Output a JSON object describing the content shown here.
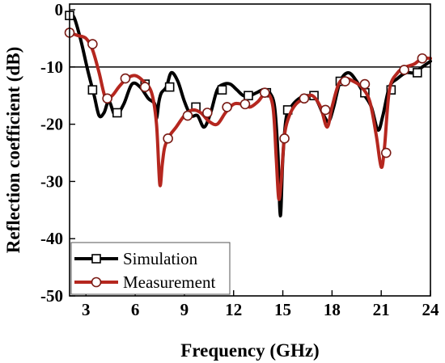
{
  "chart_data": {
    "type": "line",
    "xlabel": "Frequency (GHz)",
    "ylabel": "Reflection coefficient (dB)",
    "xlim": [
      2,
      24
    ],
    "ylim": [
      -50,
      1
    ],
    "x_ticks": [
      3,
      6,
      9,
      12,
      15,
      18,
      21,
      24
    ],
    "y_ticks": [
      0,
      -10,
      -20,
      -30,
      -40,
      -50
    ],
    "reference_line": -10,
    "grid": false,
    "legend_position": "bottom-left",
    "series": [
      {
        "name": "Simulation",
        "color": "#000000",
        "marker": "square",
        "x": [
          2.0,
          2.3,
          2.7,
          3.1,
          3.5,
          3.8,
          4.1,
          4.4,
          4.8,
          5.3,
          5.8,
          6.3,
          6.8,
          7.2,
          7.3,
          7.45,
          7.6,
          7.9,
          8.2,
          8.6,
          9.0,
          9.4,
          9.8,
          10.2,
          10.6,
          11.0,
          11.4,
          11.8,
          12.2,
          12.6,
          13.0,
          13.4,
          13.8,
          14.2,
          14.5,
          14.7,
          14.85,
          15.0,
          15.2,
          15.5,
          16.0,
          16.5,
          17.0,
          17.5,
          17.8,
          18.1,
          18.5,
          19.0,
          19.5,
          20.0,
          20.4,
          20.8,
          21.1,
          21.5,
          22.0,
          22.5,
          23.0,
          23.5,
          24.0
        ],
        "y": [
          -0.5,
          -1.5,
          -5.5,
          -10.5,
          -15.0,
          -18.5,
          -18.0,
          -16.0,
          -18.5,
          -16.5,
          -13.0,
          -13.5,
          -15.5,
          -16.5,
          -19.0,
          -16.0,
          -14.5,
          -13.5,
          -11.0,
          -12.5,
          -16.0,
          -18.5,
          -18.5,
          -20.5,
          -18.0,
          -14.0,
          -13.0,
          -13.0,
          -14.0,
          -15.0,
          -15.0,
          -14.5,
          -14.0,
          -14.5,
          -17.0,
          -25.0,
          -36.0,
          -26.0,
          -19.0,
          -17.0,
          -15.5,
          -15.0,
          -15.5,
          -18.5,
          -19.5,
          -17.0,
          -12.5,
          -11.0,
          -12.5,
          -15.0,
          -17.0,
          -21.0,
          -18.5,
          -13.5,
          -12.0,
          -11.0,
          -11.0,
          -10.0,
          -9.0
        ],
        "marker_x": [
          2.0,
          3.4,
          4.9,
          6.6,
          8.1,
          9.7,
          11.3,
          12.9,
          14.0,
          15.3,
          16.9,
          18.5,
          20.0,
          21.6,
          23.2
        ],
        "marker_y": [
          -1.0,
          -14.0,
          -18.0,
          -13.0,
          -13.5,
          -17.0,
          -14.0,
          -15.0,
          -14.5,
          -17.5,
          -15.0,
          -12.5,
          -14.5,
          -14.0,
          -11.0
        ]
      },
      {
        "name": "Measurement",
        "color": "#b5271f",
        "marker": "circle",
        "x": [
          2.0,
          2.5,
          3.0,
          3.4,
          3.8,
          4.2,
          4.6,
          5.0,
          5.5,
          6.0,
          6.5,
          7.0,
          7.3,
          7.5,
          7.65,
          7.8,
          8.1,
          8.5,
          9.0,
          9.5,
          10.0,
          10.5,
          11.0,
          11.5,
          12.0,
          12.5,
          13.0,
          13.5,
          14.0,
          14.4,
          14.6,
          14.75,
          14.9,
          15.1,
          15.4,
          15.8,
          16.3,
          16.8,
          17.3,
          17.7,
          18.0,
          18.4,
          18.8,
          19.3,
          19.8,
          20.3,
          20.7,
          21.0,
          21.2,
          21.5,
          22.0,
          22.5,
          23.0,
          23.5,
          24.0
        ],
        "y": [
          -4.0,
          -4.5,
          -5.0,
          -7.0,
          -11.0,
          -15.5,
          -15.0,
          -13.5,
          -12.0,
          -11.5,
          -12.5,
          -14.5,
          -20.0,
          -30.5,
          -27.0,
          -24.0,
          -22.0,
          -20.5,
          -18.5,
          -17.5,
          -18.0,
          -19.5,
          -20.0,
          -18.0,
          -16.5,
          -16.5,
          -17.0,
          -16.0,
          -14.5,
          -17.0,
          -26.0,
          -33.0,
          -30.0,
          -22.0,
          -18.5,
          -16.5,
          -15.5,
          -15.0,
          -17.0,
          -20.5,
          -17.0,
          -13.0,
          -12.0,
          -12.5,
          -13.5,
          -16.0,
          -22.0,
          -27.5,
          -24.0,
          -14.0,
          -11.0,
          -10.0,
          -9.5,
          -8.5,
          -8.5
        ],
        "marker_x": [
          2.0,
          3.4,
          4.3,
          5.4,
          6.6,
          8.0,
          9.2,
          10.4,
          11.6,
          12.7,
          13.9,
          15.1,
          16.3,
          17.6,
          18.8,
          20.0,
          21.3,
          22.4,
          23.5
        ],
        "marker_y": [
          -4.0,
          -6.0,
          -15.5,
          -12.0,
          -13.5,
          -22.5,
          -18.5,
          -18.0,
          -17.0,
          -16.5,
          -14.5,
          -22.5,
          -15.5,
          -17.5,
          -12.5,
          -13.0,
          -25.0,
          -10.5,
          -8.5
        ]
      }
    ]
  }
}
